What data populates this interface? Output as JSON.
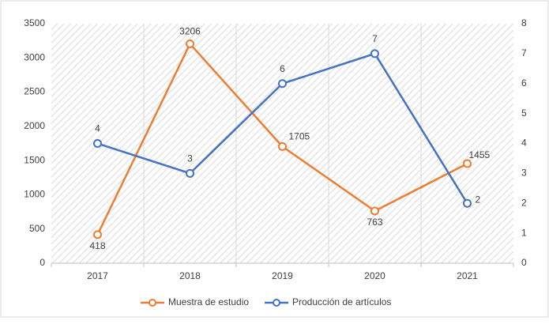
{
  "chart_data": {
    "type": "line",
    "categories": [
      "2017",
      "2018",
      "2019",
      "2020",
      "2021"
    ],
    "series": [
      {
        "name": "Muestra de estudio",
        "color": "#ed7d31",
        "values": [
          418,
          3206,
          1705,
          763,
          1455
        ]
      },
      {
        "name": "Producción de artículos",
        "color": "#4472c4",
        "axis": "y2",
        "values": [
          4,
          3,
          6,
          7,
          2
        ]
      }
    ],
    "ylim": [
      0,
      3500
    ],
    "yticks": [
      0,
      500,
      1000,
      1500,
      2000,
      2500,
      3000,
      3500
    ],
    "y2lim": [
      0,
      8
    ],
    "y2ticks": [
      0,
      1,
      2,
      3,
      4,
      5,
      6,
      7,
      8
    ],
    "legend": "bottom"
  }
}
